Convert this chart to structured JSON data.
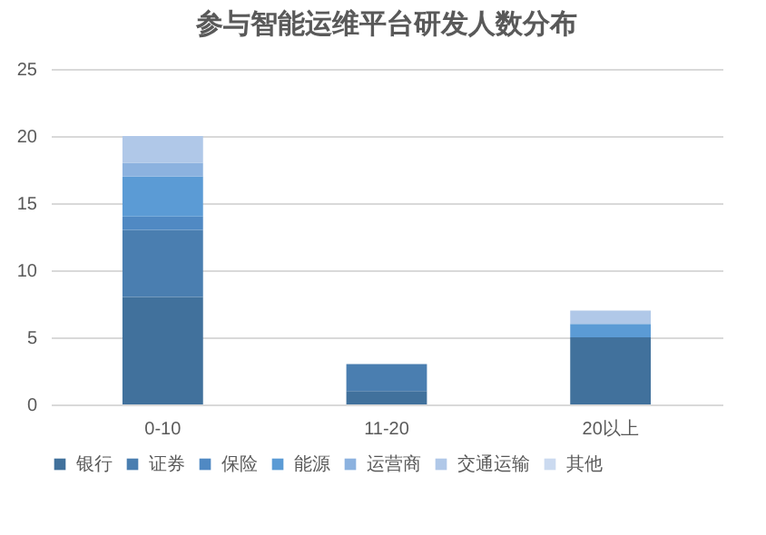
{
  "chart_data": {
    "type": "bar",
    "title": "参与智能运维平台研发人数分布",
    "stacked": true,
    "categories": [
      "0-10",
      "11-20",
      "20以上"
    ],
    "series": [
      {
        "name": "银行",
        "color": "#41719c",
        "values": [
          8,
          1,
          5
        ]
      },
      {
        "name": "证券",
        "color": "#4a7eb0",
        "values": [
          5,
          2,
          0
        ]
      },
      {
        "name": "保险",
        "color": "#5089c3",
        "values": [
          1,
          0,
          0
        ]
      },
      {
        "name": "能源",
        "color": "#5b9bd5",
        "values": [
          3,
          0,
          1
        ]
      },
      {
        "name": "运营商",
        "color": "#8cb2df",
        "values": [
          1,
          0,
          0
        ]
      },
      {
        "name": "交通运输",
        "color": "#b0c8e8",
        "values": [
          2,
          0,
          1
        ]
      },
      {
        "name": "其他",
        "color": "#cbdaf0",
        "values": [
          0,
          0,
          0
        ]
      }
    ],
    "ylim": [
      0,
      25
    ],
    "yticks": [
      0,
      5,
      10,
      15,
      20,
      25
    ],
    "grid": "y",
    "legend": "bottom"
  }
}
